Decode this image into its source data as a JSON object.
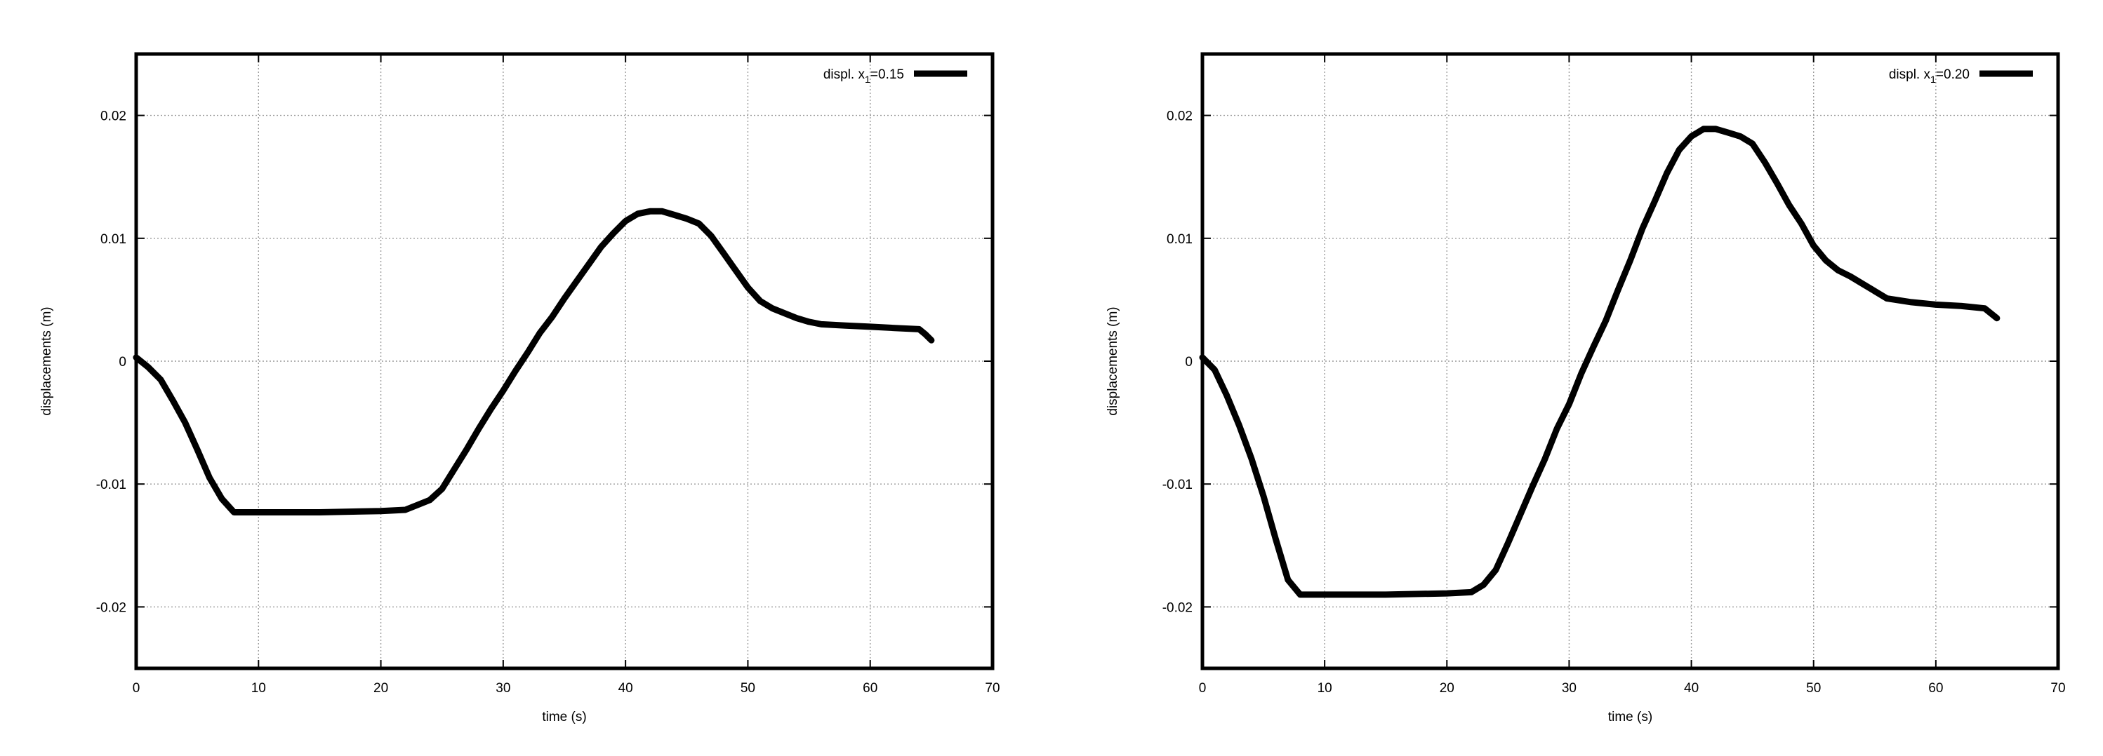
{
  "chart_data": [
    {
      "type": "line",
      "xlabel": "time (s)",
      "ylabel": "displacements (m)",
      "xlim": [
        0,
        70
      ],
      "ylim": [
        -0.025,
        0.025
      ],
      "xticks": [
        0,
        10,
        20,
        30,
        40,
        50,
        60,
        70
      ],
      "xtick_labels": [
        "0",
        "10",
        "20",
        "30",
        "40",
        "50",
        "60",
        "70"
      ],
      "yticks": [
        -0.02,
        -0.01,
        0,
        0.01,
        0.02
      ],
      "ytick_labels": [
        "-0.02",
        "-0.01",
        "0",
        "0.01",
        "0.02"
      ],
      "grid": true,
      "legend_position": "top-right",
      "series": [
        {
          "name": "displ. x1=0.15",
          "legend_prefix": "displ. x",
          "legend_sub": "1",
          "legend_suffix": "=0.15",
          "color": "#000000",
          "x": [
            0,
            1,
            2,
            3,
            4,
            5,
            6,
            7,
            8,
            9,
            10,
            15,
            20,
            22,
            23,
            24,
            25,
            26,
            27,
            28,
            29,
            30,
            31,
            32,
            33,
            34,
            35,
            36,
            37,
            38,
            39,
            40,
            41,
            42,
            43,
            44,
            45,
            46,
            47,
            48,
            49,
            50,
            51,
            52,
            53,
            54,
            55,
            56,
            58,
            60,
            62,
            64,
            64.5,
            65
          ],
          "y": [
            0.0003,
            -0.0005,
            -0.0015,
            -0.0032,
            -0.005,
            -0.0072,
            -0.0095,
            -0.0112,
            -0.0123,
            -0.0123,
            -0.0123,
            -0.0123,
            -0.0122,
            -0.0121,
            -0.0117,
            -0.0113,
            -0.0104,
            -0.0088,
            -0.0072,
            -0.0055,
            -0.0039,
            -0.0024,
            -0.0008,
            0.0007,
            0.0023,
            0.0036,
            0.0051,
            0.0065,
            0.0079,
            0.0093,
            0.0104,
            0.0114,
            0.012,
            0.0122,
            0.0122,
            0.0119,
            0.0116,
            0.0112,
            0.0102,
            0.0088,
            0.0074,
            0.006,
            0.0049,
            0.0043,
            0.0039,
            0.0035,
            0.0032,
            0.003,
            0.0029,
            0.0028,
            0.0027,
            0.0026,
            0.0022,
            0.0017
          ]
        }
      ]
    },
    {
      "type": "line",
      "xlabel": "time (s)",
      "ylabel": "displacements (m)",
      "xlim": [
        0,
        70
      ],
      "ylim": [
        -0.025,
        0.025
      ],
      "xticks": [
        0,
        10,
        20,
        30,
        40,
        50,
        60,
        70
      ],
      "xtick_labels": [
        "0",
        "10",
        "20",
        "30",
        "40",
        "50",
        "60",
        "70"
      ],
      "yticks": [
        -0.02,
        -0.01,
        0,
        0.01,
        0.02
      ],
      "ytick_labels": [
        "-0.02",
        "-0.01",
        "0",
        "0.01",
        "0.02"
      ],
      "grid": true,
      "legend_position": "top-right",
      "series": [
        {
          "name": "displ. x1=0.20",
          "legend_prefix": "displ. x",
          "legend_sub": "1",
          "legend_suffix": "=0.20",
          "color": "#000000",
          "x": [
            0,
            1,
            2,
            3,
            4,
            5,
            6,
            7,
            8,
            9,
            10,
            15,
            20,
            22,
            23,
            24,
            25,
            26,
            27,
            28,
            29,
            30,
            31,
            32,
            33,
            34,
            35,
            36,
            37,
            38,
            39,
            40,
            41,
            42,
            43,
            44,
            45,
            46,
            47,
            48,
            49,
            50,
            51,
            52,
            53,
            54,
            55,
            56,
            58,
            60,
            62,
            64,
            65
          ],
          "y": [
            0.0003,
            -0.0007,
            -0.0028,
            -0.0052,
            -0.0079,
            -0.011,
            -0.0145,
            -0.0178,
            -0.019,
            -0.019,
            -0.019,
            -0.019,
            -0.0189,
            -0.0188,
            -0.0182,
            -0.017,
            -0.0148,
            -0.0125,
            -0.0102,
            -0.008,
            -0.0055,
            -0.0035,
            -0.001,
            0.0012,
            0.0033,
            0.0058,
            0.0082,
            0.0108,
            0.013,
            0.0153,
            0.0172,
            0.0183,
            0.0189,
            0.0189,
            0.0186,
            0.0183,
            0.0177,
            0.0162,
            0.0145,
            0.0127,
            0.0112,
            0.0094,
            0.0082,
            0.0074,
            0.0069,
            0.0063,
            0.0057,
            0.0051,
            0.0048,
            0.0046,
            0.0045,
            0.0043,
            0.0035
          ]
        }
      ]
    }
  ]
}
